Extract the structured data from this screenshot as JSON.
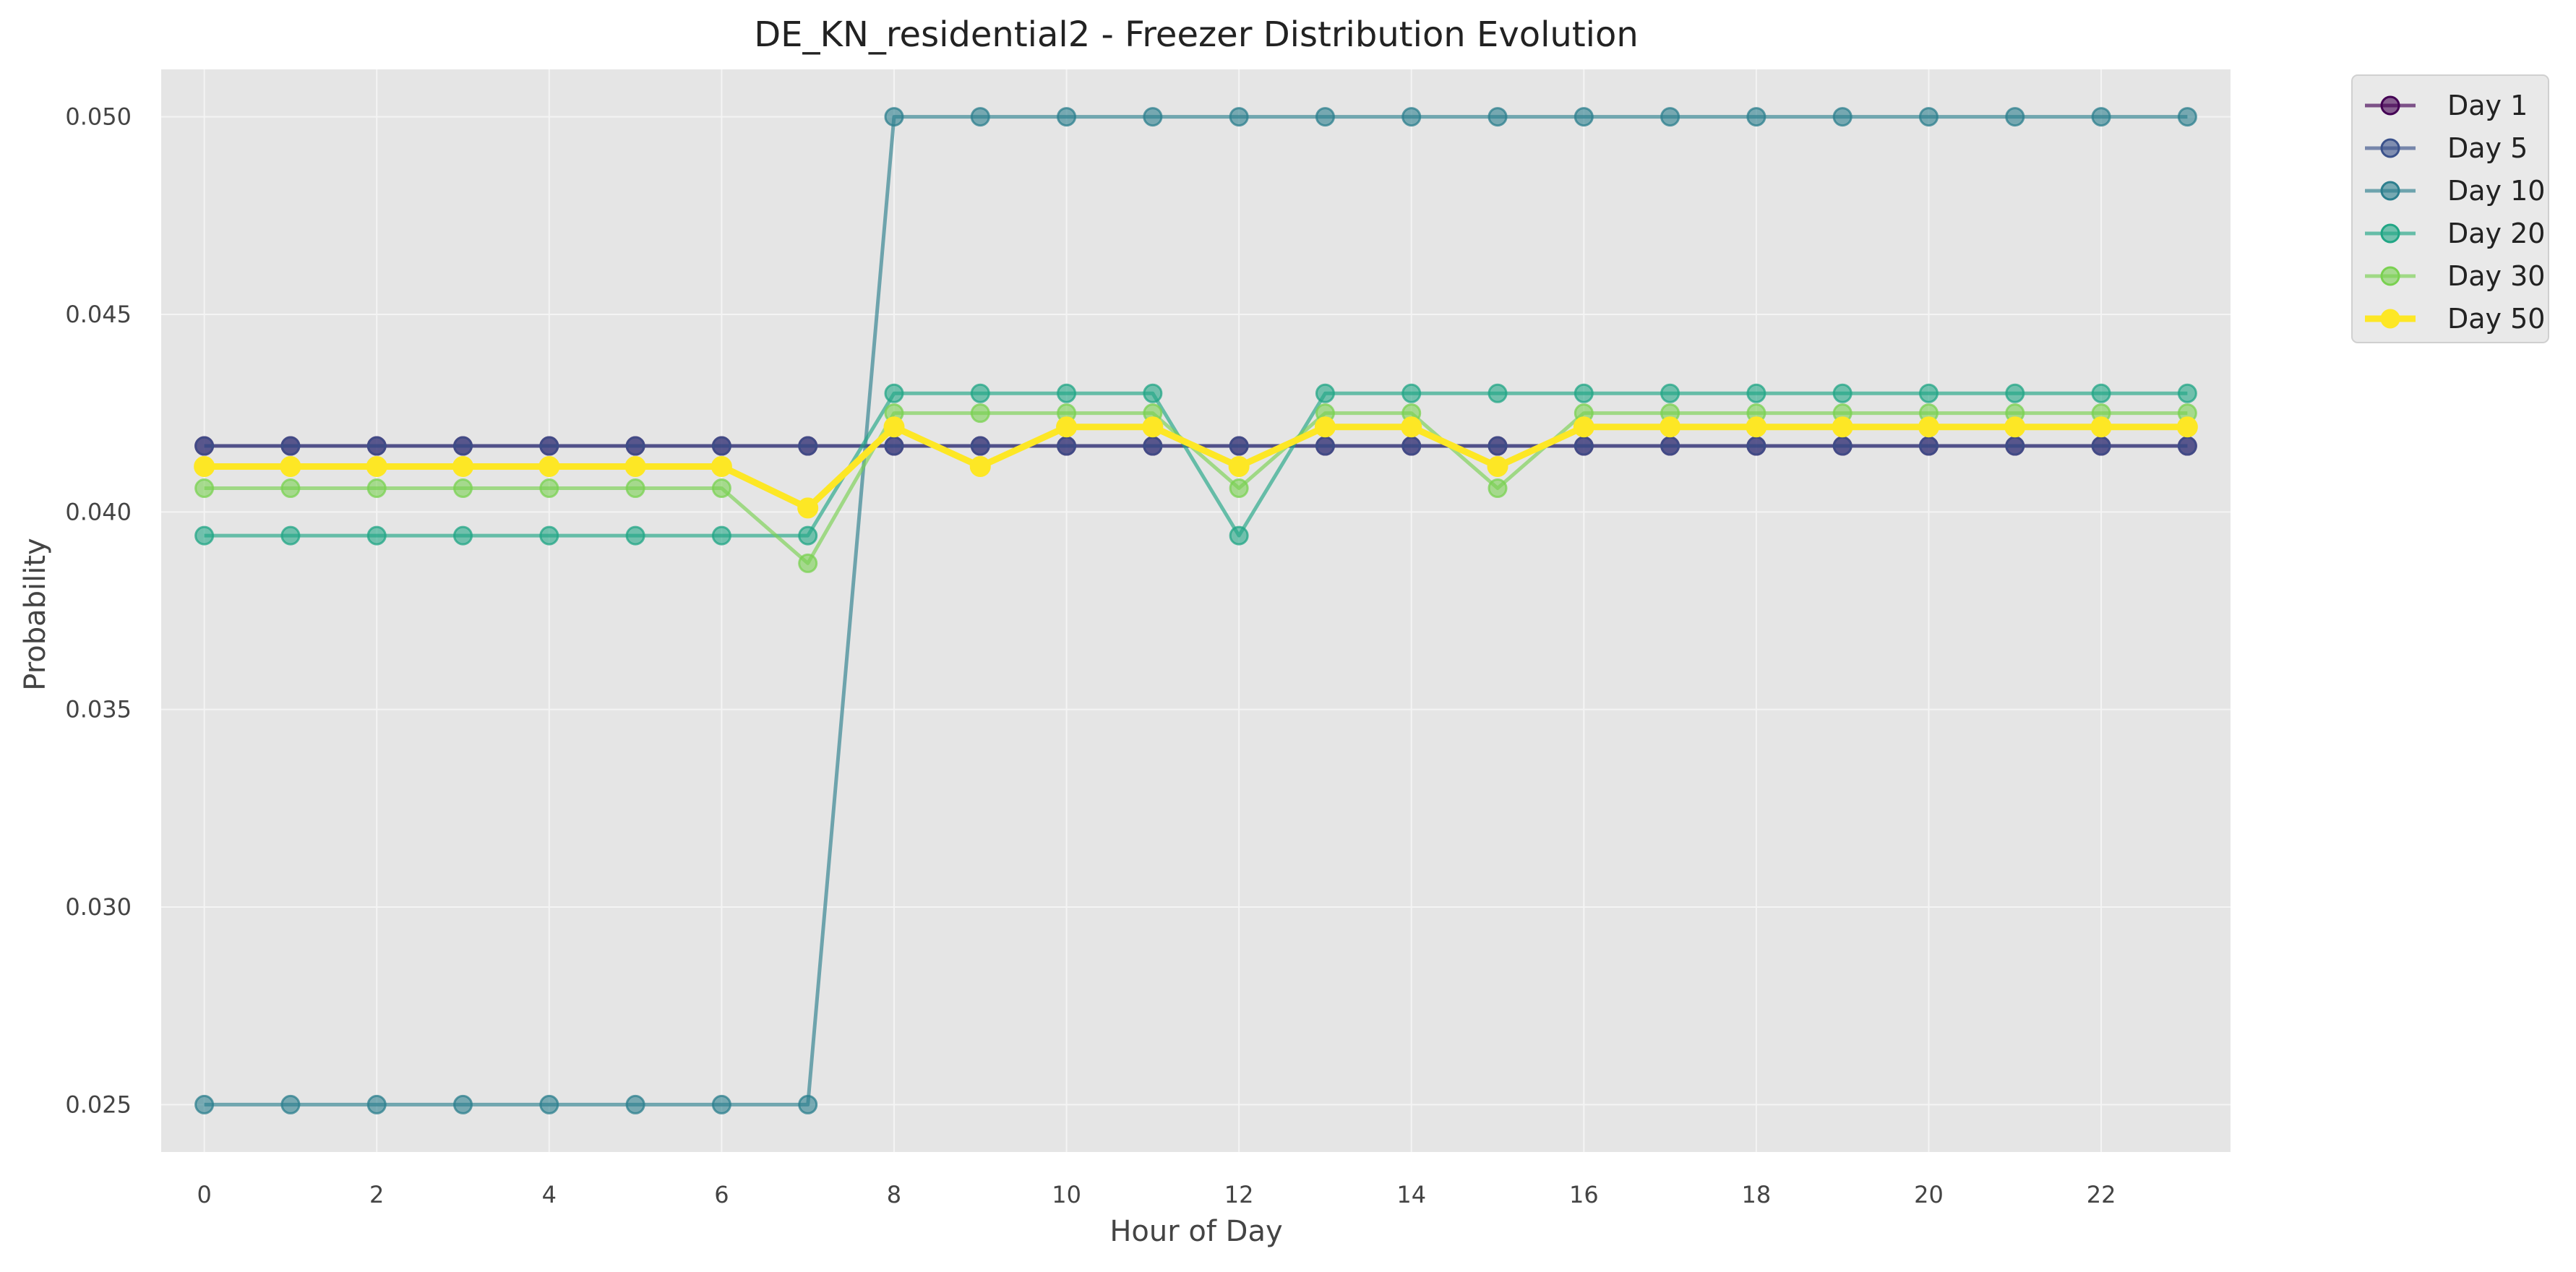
{
  "chart_data": {
    "type": "line",
    "title": "DE_KN_residential2 - Freezer Distribution Evolution",
    "xlabel": "Hour of Day",
    "ylabel": "Probability",
    "x": [
      0,
      1,
      2,
      3,
      4,
      5,
      6,
      7,
      8,
      9,
      10,
      11,
      12,
      13,
      14,
      15,
      16,
      17,
      18,
      19,
      20,
      21,
      22,
      23
    ],
    "xticks": [
      0,
      2,
      4,
      6,
      8,
      10,
      12,
      14,
      16,
      18,
      20,
      22
    ],
    "xticklabels": [
      "0",
      "2",
      "4",
      "6",
      "8",
      "10",
      "12",
      "14",
      "16",
      "18",
      "20",
      "22"
    ],
    "yticks": [
      0.025,
      0.03,
      0.035,
      0.04,
      0.045,
      0.05
    ],
    "yticklabels": [
      "0.025",
      "0.030",
      "0.035",
      "0.040",
      "0.045",
      "0.050"
    ],
    "xlim": [
      -0.5,
      23.5
    ],
    "ylim": [
      0.0238,
      0.0512
    ],
    "grid": true,
    "legend_position": "outside top-right",
    "background": "#e5e5e5",
    "series": [
      {
        "name": "Day 1",
        "color": "#440154",
        "line_opacity": 0.65,
        "highlight": false,
        "values": [
          0.04167,
          0.04167,
          0.04167,
          0.04167,
          0.04167,
          0.04167,
          0.04167,
          0.04167,
          0.04167,
          0.04167,
          0.04167,
          0.04167,
          0.04167,
          0.04167,
          0.04167,
          0.04167,
          0.04167,
          0.04167,
          0.04167,
          0.04167,
          0.04167,
          0.04167,
          0.04167,
          0.04167
        ]
      },
      {
        "name": "Day 5",
        "color": "#3b528b",
        "line_opacity": 0.65,
        "highlight": false,
        "values": [
          0.04167,
          0.04167,
          0.04167,
          0.04167,
          0.04167,
          0.04167,
          0.04167,
          0.04167,
          0.04167,
          0.04167,
          0.04167,
          0.04167,
          0.04167,
          0.04167,
          0.04167,
          0.04167,
          0.04167,
          0.04167,
          0.04167,
          0.04167,
          0.04167,
          0.04167,
          0.04167,
          0.04167
        ]
      },
      {
        "name": "Day 10",
        "color": "#2c7f8e",
        "line_opacity": 0.65,
        "highlight": false,
        "values": [
          0.025,
          0.025,
          0.025,
          0.025,
          0.025,
          0.025,
          0.025,
          0.025,
          0.05,
          0.05,
          0.05,
          0.05,
          0.05,
          0.05,
          0.05,
          0.05,
          0.05,
          0.05,
          0.05,
          0.05,
          0.05,
          0.05,
          0.05,
          0.05
        ]
      },
      {
        "name": "Day 20",
        "color": "#21a685",
        "line_opacity": 0.65,
        "highlight": false,
        "values": [
          0.0394,
          0.0394,
          0.0394,
          0.0394,
          0.0394,
          0.0394,
          0.0394,
          0.0394,
          0.043,
          0.043,
          0.043,
          0.043,
          0.0394,
          0.043,
          0.043,
          0.043,
          0.043,
          0.043,
          0.043,
          0.043,
          0.043,
          0.043,
          0.043,
          0.043
        ]
      },
      {
        "name": "Day 30",
        "color": "#7ad151",
        "line_opacity": 0.65,
        "highlight": false,
        "values": [
          0.0406,
          0.0406,
          0.0406,
          0.0406,
          0.0406,
          0.0406,
          0.0406,
          0.0387,
          0.0425,
          0.0425,
          0.0425,
          0.0425,
          0.0406,
          0.0425,
          0.0425,
          0.0406,
          0.0425,
          0.0425,
          0.0425,
          0.0425,
          0.0425,
          0.0425,
          0.0425,
          0.0425
        ]
      },
      {
        "name": "Day 50",
        "color": "#fde725",
        "line_opacity": 1.0,
        "highlight": true,
        "values": [
          0.04115,
          0.04115,
          0.04115,
          0.04115,
          0.04115,
          0.04115,
          0.04115,
          0.0401,
          0.04215,
          0.04115,
          0.04215,
          0.04215,
          0.04115,
          0.04215,
          0.04215,
          0.04115,
          0.04215,
          0.04215,
          0.04215,
          0.04215,
          0.04215,
          0.04215,
          0.04215,
          0.04215
        ]
      }
    ]
  }
}
